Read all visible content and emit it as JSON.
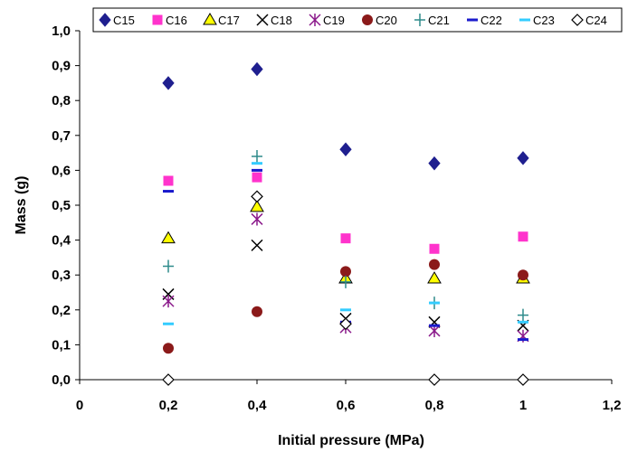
{
  "chart_data": {
    "type": "scatter",
    "title": "",
    "xlabel": "Initial pressure (MPa)",
    "ylabel": "Mass (g)",
    "xlim": [
      0,
      1.2
    ],
    "ylim": [
      0,
      1.0
    ],
    "x_ticks": [
      "0",
      "0,2",
      "0,4",
      "0,6",
      "0,8",
      "1",
      "1,2"
    ],
    "y_ticks": [
      "0,0",
      "0,1",
      "0,2",
      "0,3",
      "0,4",
      "0,5",
      "0,6",
      "0,7",
      "0,8",
      "0,9",
      "1,0"
    ],
    "x_tick_values": [
      0,
      0.2,
      0.4,
      0.6,
      0.8,
      1.0,
      1.2
    ],
    "y_tick_values": [
      0,
      0.1,
      0.2,
      0.3,
      0.4,
      0.5,
      0.6,
      0.7,
      0.8,
      0.9,
      1.0
    ],
    "grid": false,
    "legend_position": "top",
    "x": [
      0.2,
      0.4,
      0.6,
      0.8,
      1.0
    ],
    "series": [
      {
        "name": "C15",
        "marker": "diamond",
        "color": "#1f1f8f",
        "values": [
          0.85,
          0.89,
          0.66,
          0.62,
          0.635
        ]
      },
      {
        "name": "C16",
        "marker": "square",
        "color": "#ff33cc",
        "values": [
          0.57,
          0.58,
          0.405,
          0.375,
          0.41
        ]
      },
      {
        "name": "C17",
        "marker": "triangle",
        "color": "#ffff00",
        "values": [
          0.405,
          0.495,
          0.29,
          0.29,
          0.29
        ]
      },
      {
        "name": "C18",
        "marker": "x",
        "color": "#000000",
        "values": [
          0.245,
          0.385,
          0.175,
          0.165,
          0.155
        ]
      },
      {
        "name": "C19",
        "marker": "star",
        "color": "#8b1a8b",
        "values": [
          0.225,
          0.46,
          0.15,
          0.14,
          0.125
        ]
      },
      {
        "name": "C20",
        "marker": "circle",
        "color": "#8b1a1a",
        "values": [
          0.09,
          0.195,
          0.31,
          0.33,
          0.3
        ]
      },
      {
        "name": "C21",
        "marker": "plus",
        "color": "#2e8b8b",
        "values": [
          0.325,
          0.64,
          0.28,
          0.22,
          0.185
        ]
      },
      {
        "name": "C22",
        "marker": "dash",
        "color": "#1a1acc",
        "values": [
          0.54,
          0.6,
          0.165,
          0.155,
          0.115
        ]
      },
      {
        "name": "C23",
        "marker": "dash",
        "color": "#33ccff",
        "values": [
          0.16,
          0.62,
          0.2,
          0.22,
          0.165
        ]
      },
      {
        "name": "C24",
        "marker": "diamond-open",
        "color": "#000000",
        "values": [
          0.0,
          0.525,
          0.16,
          0.0,
          0.0
        ]
      }
    ]
  }
}
